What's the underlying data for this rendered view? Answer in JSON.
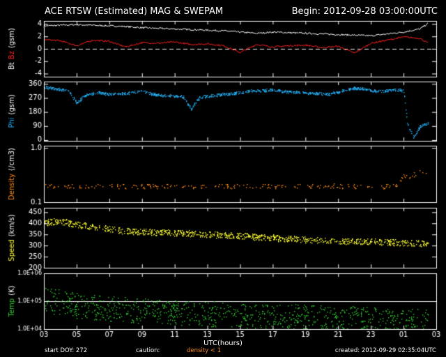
{
  "header": {
    "title": "ACE RTSW (Estimated) MAG & SWEPAM",
    "begin": "Begin: 2012-09-28 03:00:00UTC"
  },
  "footer": {
    "start_doy": "start DOY: 272",
    "caution_label": "caution:",
    "caution_note": "density < 1",
    "created": "created: 2012-09-29 02:35:04UTC"
  },
  "chart_data": [
    {
      "type": "line",
      "panel": "magnetic field",
      "ylabel_parts": [
        "Bt",
        "Bz",
        "(gsm)"
      ],
      "ylim": [
        -4.5,
        4.5
      ],
      "yticks": [
        "4",
        "2",
        "0",
        "-2",
        "-4"
      ],
      "reference_line": 0,
      "series": [
        {
          "name": "Bt",
          "color": "#ffffff",
          "x": [
            0,
            1,
            2,
            3,
            4,
            5,
            6,
            7,
            8,
            9,
            10,
            11,
            12,
            13,
            14,
            15,
            16,
            17,
            18,
            19,
            20,
            21,
            22,
            23,
            23.5
          ],
          "values": [
            3.7,
            3.8,
            3.9,
            3.8,
            3.7,
            3.6,
            3.4,
            3.3,
            3.2,
            3.1,
            3.0,
            2.9,
            2.7,
            2.5,
            2.7,
            2.6,
            2.5,
            2.4,
            2.3,
            2.2,
            2.1,
            2.4,
            2.7,
            3.2,
            4.1
          ]
        },
        {
          "name": "Bz",
          "color": "#ff2020",
          "x": [
            0,
            1,
            2,
            3,
            4,
            5,
            6,
            7,
            8,
            9,
            10,
            11,
            12,
            13,
            14,
            15,
            16,
            17,
            18,
            19,
            20,
            21,
            22,
            23,
            23.5
          ],
          "values": [
            1.5,
            1.3,
            0.5,
            1.4,
            1.2,
            0.3,
            1.0,
            0.9,
            1.1,
            0.7,
            0.8,
            0.5,
            -0.6,
            0.7,
            0.3,
            0.5,
            0.6,
            0.2,
            0.4,
            -0.7,
            0.9,
            1.4,
            1.9,
            1.7,
            0.9
          ]
        }
      ]
    },
    {
      "type": "scatter",
      "panel": "phi",
      "ylabel_parts": [
        "Phi",
        "(gsm)"
      ],
      "ylim": [
        -5,
        375
      ],
      "yticks": [
        "360",
        "270",
        "180",
        "90",
        "0"
      ],
      "series": [
        {
          "name": "Phi",
          "color": "#22aaee",
          "x": [
            0,
            0.5,
            1,
            1.5,
            2,
            2.5,
            3,
            3.5,
            4,
            4.5,
            5,
            5.5,
            6,
            6.5,
            7,
            7.5,
            8,
            8.5,
            9,
            9.5,
            10,
            10.5,
            11,
            11.5,
            12,
            12.5,
            13,
            13.5,
            14,
            14.5,
            15,
            15.5,
            16,
            16.5,
            17,
            17.5,
            18,
            18.5,
            19,
            19.5,
            20,
            20.5,
            21,
            21.5,
            22,
            22.2,
            22.6,
            23,
            23.5
          ],
          "values": [
            340,
            335,
            325,
            320,
            240,
            290,
            300,
            305,
            295,
            300,
            300,
            310,
            315,
            300,
            290,
            288,
            285,
            280,
            200,
            275,
            285,
            290,
            295,
            300,
            305,
            315,
            320,
            320,
            325,
            315,
            310,
            310,
            305,
            300,
            300,
            298,
            310,
            325,
            335,
            330,
            320,
            315,
            318,
            325,
            320,
            110,
            20,
            90,
            110
          ]
        }
      ]
    },
    {
      "type": "scatter",
      "panel": "density",
      "ylabel_parts": [
        "Density",
        "(/cm3)"
      ],
      "scale": "log",
      "ylim": [
        0.1,
        1.1
      ],
      "yticks": [
        "1.0",
        "0.1"
      ],
      "series": [
        {
          "name": "Density",
          "color": "#ff8c1a",
          "x": [
            0,
            1.2,
            2.5,
            3,
            5.4,
            6.2,
            7.6,
            8.5,
            9.7,
            11,
            12.5,
            14,
            15.2,
            16.8,
            18.2,
            19.4,
            20.6,
            21.5,
            22,
            22.5,
            23,
            23.5
          ],
          "values": [
            0.2,
            0.2,
            0.2,
            0.2,
            0.2,
            0.2,
            0.2,
            0.2,
            0.2,
            0.2,
            0.2,
            0.2,
            0.2,
            0.2,
            0.2,
            0.2,
            0.2,
            0.2,
            0.3,
            0.3,
            0.4,
            0.3
          ]
        }
      ]
    },
    {
      "type": "scatter",
      "panel": "speed",
      "ylabel_parts": [
        "Speed",
        "(km/s)"
      ],
      "ylim": [
        200,
        470
      ],
      "yticks": [
        "450",
        "400",
        "350",
        "300",
        "250",
        "200"
      ],
      "series": [
        {
          "name": "Speed",
          "color": "#ffff33",
          "x": [
            0,
            1,
            2,
            3,
            4,
            5,
            6,
            7,
            8,
            9,
            10,
            11,
            12,
            13,
            14,
            15,
            16,
            17,
            18,
            19,
            20,
            21,
            22,
            23,
            23.5
          ],
          "values": [
            405,
            410,
            395,
            385,
            375,
            365,
            362,
            360,
            358,
            355,
            352,
            348,
            345,
            340,
            336,
            332,
            328,
            325,
            322,
            320,
            318,
            316,
            314,
            312,
            308
          ]
        }
      ]
    },
    {
      "type": "scatter",
      "panel": "temperature",
      "ylabel_parts": [
        "Temp",
        "(K)"
      ],
      "scale": "log",
      "ylim": [
        10000,
        1000000
      ],
      "yticks": [
        "1.0E+06",
        "1.0E+05",
        "1.0E+04"
      ],
      "reference_line": 100000,
      "series": [
        {
          "name": "Temp",
          "color": "#33cc33",
          "x": [
            0,
            1,
            2,
            3,
            4,
            5,
            6,
            7,
            8,
            9,
            10,
            11,
            12,
            13,
            14,
            15,
            16,
            17,
            18,
            19,
            20,
            21,
            22,
            23,
            23.5
          ],
          "values": [
            120000,
            90000,
            70000,
            60000,
            55000,
            50000,
            45000,
            42000,
            40000,
            38000,
            36000,
            34000,
            32000,
            30000,
            29000,
            28000,
            27000,
            26000,
            25000,
            24000,
            23000,
            22000,
            21000,
            20000,
            19000
          ]
        }
      ]
    }
  ],
  "x_axis": {
    "label": "UTC(hours)",
    "range_hours": [
      0,
      24
    ],
    "tick_labels": [
      "03",
      "05",
      "07",
      "09",
      "11",
      "13",
      "15",
      "17",
      "19",
      "21",
      "23",
      "01",
      "03"
    ]
  }
}
